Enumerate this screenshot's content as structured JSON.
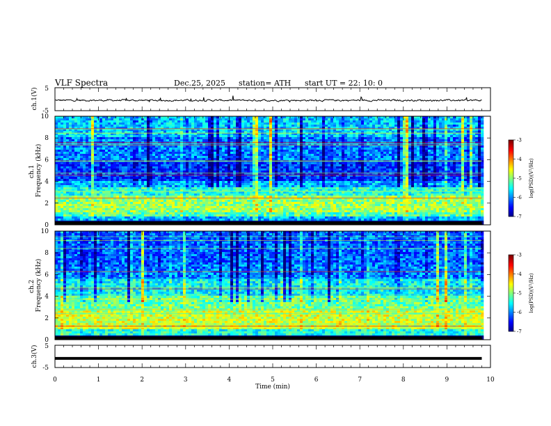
{
  "header": {
    "title": "VLF  Spectra",
    "date": "Dec.25, 2025",
    "station": "station= ATH",
    "start": "start  UT  =   22: 10: 0"
  },
  "chart_data": [
    {
      "type": "line",
      "name": "ch1-waveform",
      "ylabel": "ch.1(V)",
      "ylim": [
        -5,
        5
      ],
      "yticks": [
        "5",
        "-5"
      ],
      "xlim": [
        0,
        10
      ],
      "description_values": {
        "mean_V": -0.5,
        "noise_amplitude_V": 0.7,
        "x_end_min": 9.8
      },
      "color": "#000000"
    },
    {
      "type": "heatmap",
      "name": "ch1-spectrogram",
      "ylabel": "ch.1\nFrequency (kHz)",
      "ylim": [
        0,
        10
      ],
      "yticks": [
        "0",
        "2",
        "4",
        "6",
        "8",
        "10"
      ],
      "xlim": [
        0,
        10
      ],
      "x_end_min": 9.8,
      "colorbar": {
        "label": "log(PSD)(V²/Hz)",
        "range": [
          -7,
          -3
        ],
        "ticks": [
          "-3",
          "-4",
          "-5",
          "-6",
          "-7"
        ]
      },
      "bands": [
        {
          "f": [
            0.0,
            0.3
          ],
          "level": -7.0
        },
        {
          "f": [
            0.3,
            0.8
          ],
          "level": -5.8
        },
        {
          "f": [
            0.8,
            1.2
          ],
          "level": -5.2
        },
        {
          "f": [
            1.2,
            2.6
          ],
          "level": -4.9
        },
        {
          "f": [
            2.6,
            3.5
          ],
          "level": -5.4
        },
        {
          "f": [
            3.5,
            4.0
          ],
          "level": -5.8
        },
        {
          "f": [
            4.0,
            6.0
          ],
          "level": -6.3
        },
        {
          "f": [
            6.0,
            8.0
          ],
          "level": -6.0
        },
        {
          "f": [
            8.0,
            10.0
          ],
          "level": -5.7
        }
      ]
    },
    {
      "type": "heatmap",
      "name": "ch2-spectrogram",
      "ylabel": "ch.2\nFrequency (kHz)",
      "ylim": [
        0,
        10
      ],
      "yticks": [
        "0",
        "2",
        "4",
        "6",
        "8",
        "10"
      ],
      "xlim": [
        0,
        10
      ],
      "x_end_min": 9.8,
      "colorbar": {
        "label": "log(PSD)(V²/Hz)",
        "range": [
          -7,
          -3
        ],
        "ticks": [
          "-3",
          "-4",
          "-5",
          "-6",
          "-7"
        ]
      },
      "bands": [
        {
          "f": [
            0.0,
            0.3
          ],
          "level": -7.0
        },
        {
          "f": [
            0.3,
            1.0
          ],
          "level": -5.4
        },
        {
          "f": [
            1.0,
            2.6
          ],
          "level": -4.7
        },
        {
          "f": [
            2.6,
            4.0
          ],
          "level": -5.1
        },
        {
          "f": [
            4.0,
            5.5
          ],
          "level": -5.5
        },
        {
          "f": [
            5.5,
            7.0
          ],
          "level": -6.0
        },
        {
          "f": [
            7.0,
            10.0
          ],
          "level": -6.1
        }
      ]
    },
    {
      "type": "line",
      "name": "ch3-waveform",
      "ylabel": "ch.3(V)",
      "ylim": [
        -5,
        5
      ],
      "yticks": [
        "5",
        "-5"
      ],
      "xlim": [
        0,
        10
      ],
      "xticks": [
        "0",
        "1",
        "2",
        "3",
        "4",
        "5",
        "6",
        "7",
        "8",
        "9",
        "10"
      ],
      "xlabel": "Time  (min)",
      "description_values": {
        "mean_V": -0.9,
        "x_end_min": 9.8
      },
      "color": "#000000"
    }
  ]
}
